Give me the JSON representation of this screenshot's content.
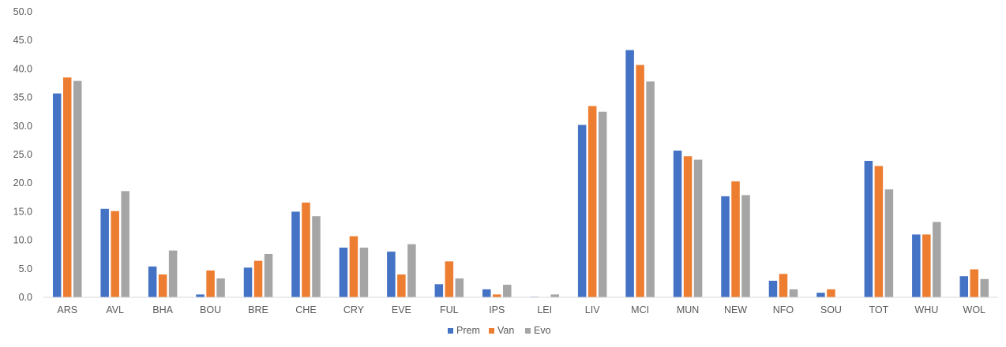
{
  "chart_data": {
    "type": "bar",
    "title": "",
    "xlabel": "",
    "ylabel": "",
    "ylim": [
      0,
      50
    ],
    "ytick_step": 5,
    "ytick_labels": [
      "0.0",
      "5.0",
      "10.0",
      "15.0",
      "20.0",
      "25.0",
      "30.0",
      "35.0",
      "40.0",
      "45.0",
      "50.0"
    ],
    "grid": false,
    "legend_position": "bottom",
    "categories": [
      "ARS",
      "AVL",
      "BHA",
      "BOU",
      "BRE",
      "CHE",
      "CRY",
      "EVE",
      "FUL",
      "IPS",
      "LEI",
      "LIV",
      "MCI",
      "MUN",
      "NEW",
      "NFO",
      "SOU",
      "TOT",
      "WHU",
      "WOL"
    ],
    "series": [
      {
        "name": "Prem",
        "color": "#4472C4",
        "values": [
          35.7,
          15.5,
          5.4,
          0.5,
          5.2,
          15.0,
          8.7,
          8.0,
          2.3,
          1.4,
          0.1,
          30.2,
          43.3,
          25.7,
          17.7,
          2.9,
          0.8,
          23.9,
          11.0,
          3.7
        ]
      },
      {
        "name": "Van",
        "color": "#ED7D31",
        "values": [
          38.5,
          15.1,
          4.0,
          4.7,
          6.4,
          16.6,
          10.7,
          4.0,
          6.3,
          0.5,
          0.0,
          33.5,
          40.7,
          24.7,
          20.3,
          4.1,
          1.4,
          23.0,
          11.0,
          4.9
        ]
      },
      {
        "name": "Evo",
        "color": "#A5A5A5",
        "values": [
          37.9,
          18.6,
          8.2,
          3.3,
          7.6,
          14.2,
          8.7,
          9.3,
          3.3,
          2.2,
          0.5,
          32.5,
          37.8,
          24.1,
          17.9,
          1.4,
          0.0,
          18.9,
          13.2,
          3.2
        ]
      }
    ]
  }
}
